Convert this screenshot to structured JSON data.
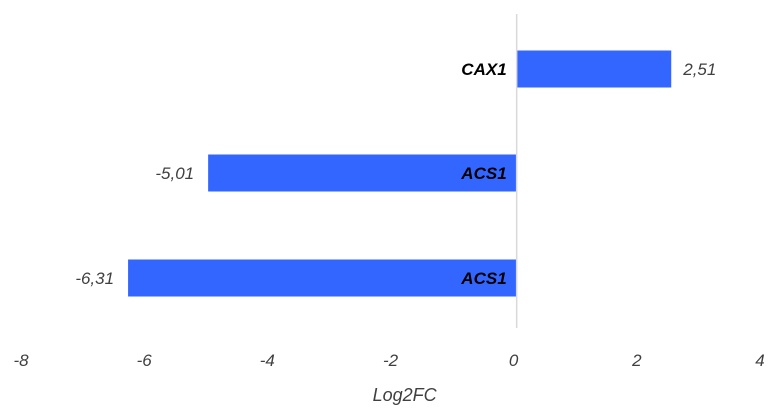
{
  "chart_data": {
    "type": "bar",
    "orientation": "horizontal",
    "categories": [
      "CAX1",
      "ACS1",
      "ACS1"
    ],
    "values": [
      2.51,
      -5.01,
      -6.31
    ],
    "value_labels": [
      "2,51",
      "-5,01",
      "-6,31"
    ],
    "xlabel": "Log2FC",
    "xlim": [
      -8,
      4
    ],
    "x_ticks": [
      -8,
      -6,
      -4,
      -2,
      0,
      2,
      4
    ],
    "grid": false,
    "legend": "none",
    "bar_color": "#3366ff",
    "zero_line_color": "#d9d9d9"
  }
}
